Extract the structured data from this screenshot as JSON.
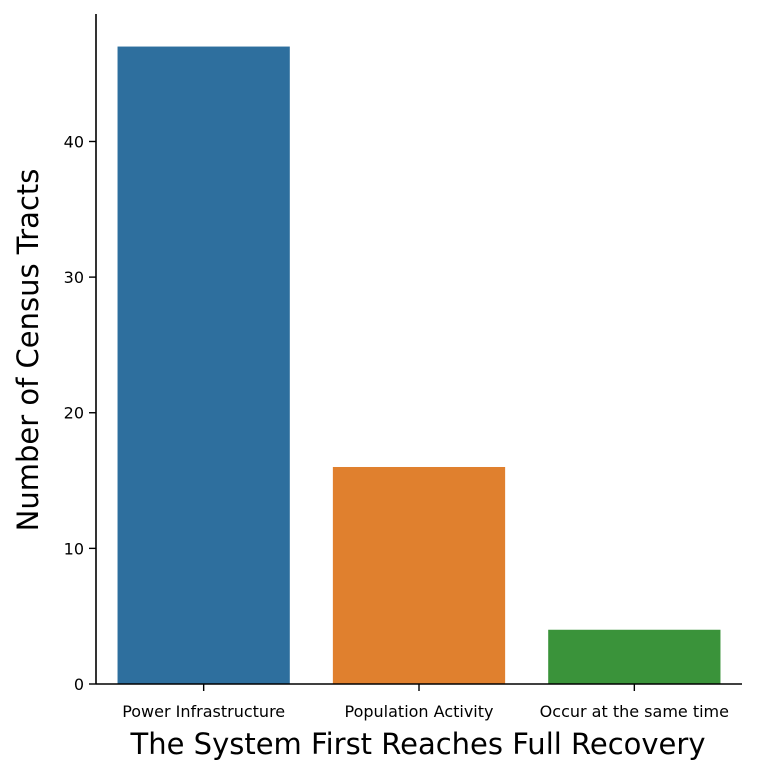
{
  "chart_data": {
    "type": "bar",
    "categories": [
      "Power Infrastructure",
      "Population Activity",
      "Occur at the same time"
    ],
    "values": [
      47,
      16,
      4
    ],
    "xlabel": "The System First Reaches Full Recovery",
    "ylabel": "Number of Census Tracts",
    "ylim": [
      0,
      49.4
    ],
    "yticks": [
      0,
      10,
      20,
      30,
      40
    ],
    "colors": [
      "#2e6f9e",
      "#e0802e",
      "#3a933a"
    ],
    "grid": false,
    "spines": [
      "left",
      "bottom"
    ]
  }
}
